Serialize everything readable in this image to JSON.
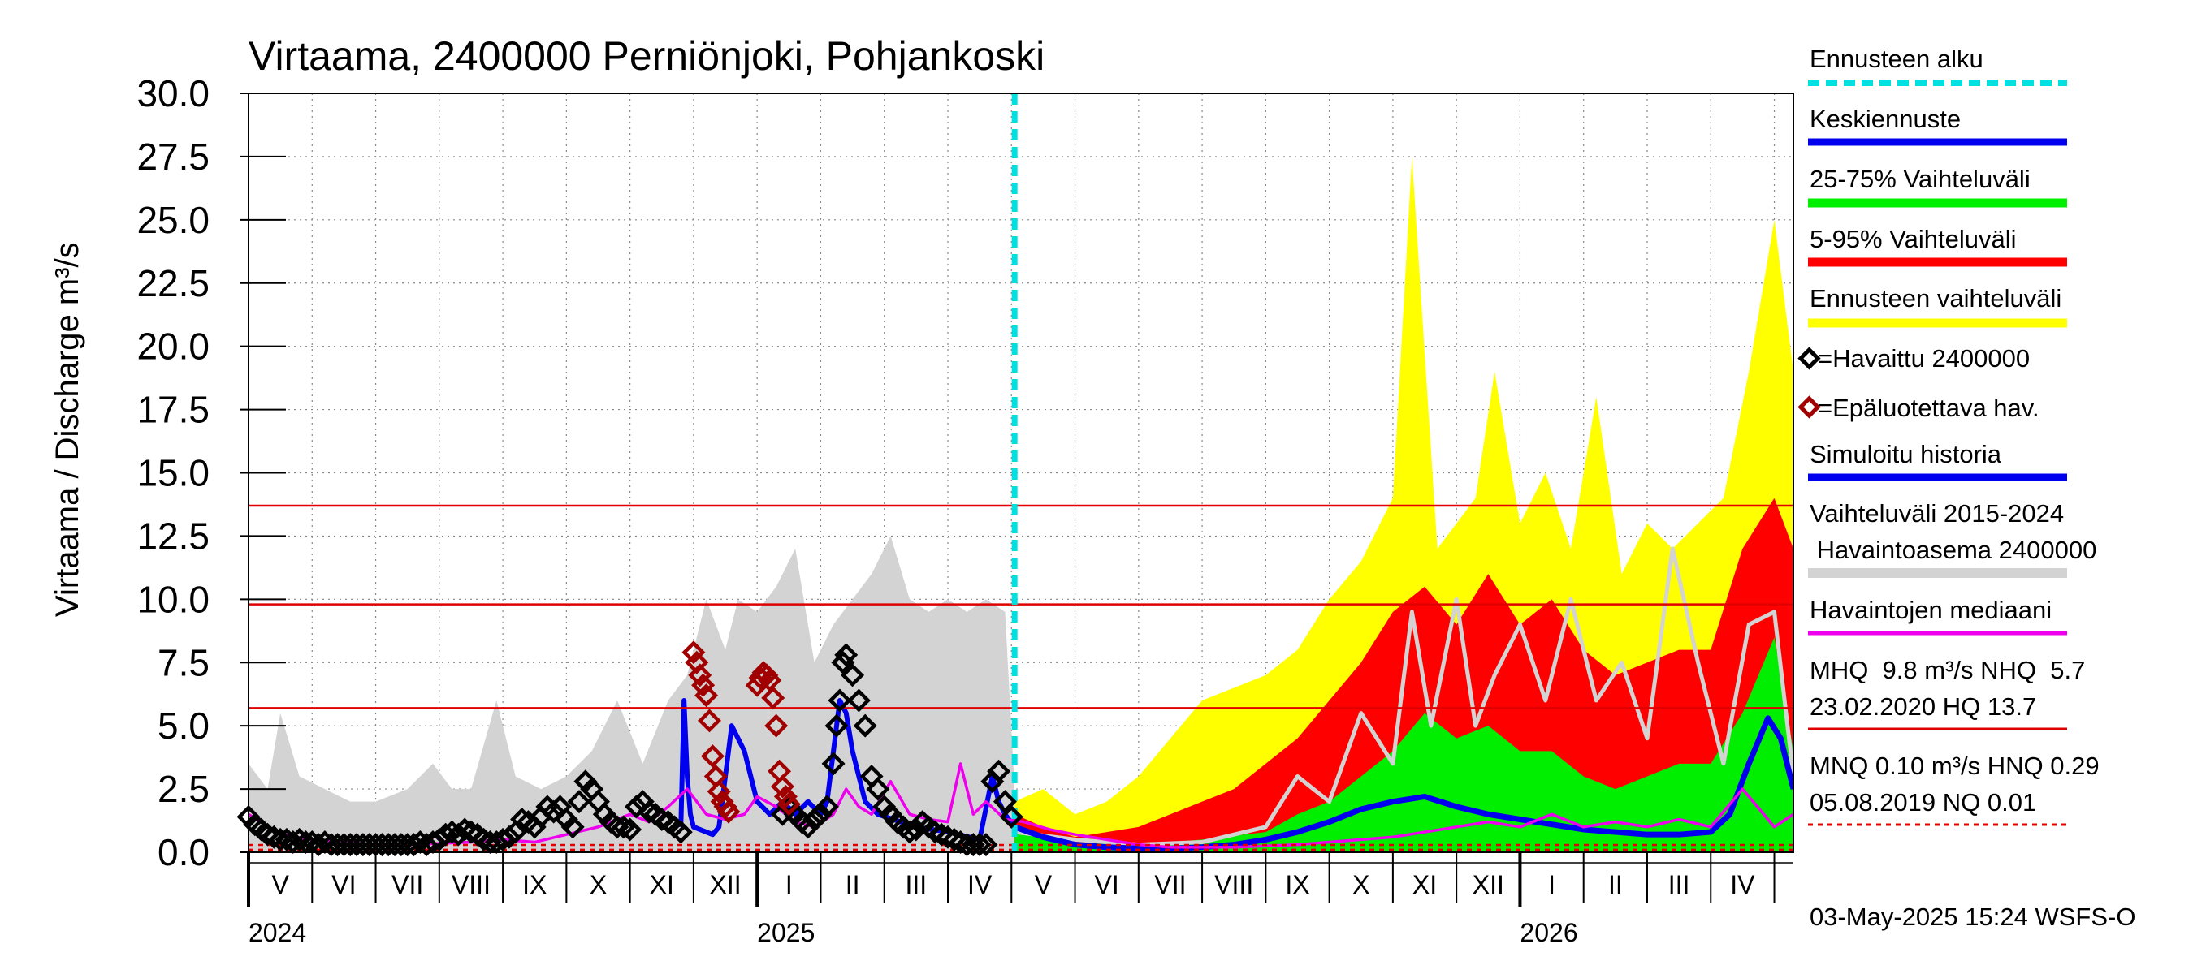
{
  "chart_data": {
    "type": "area",
    "title": "Virtaama, 2400000 Perniönjoki, Pohjankoski",
    "ylabel": "Virtaama / Discharge   m³/s",
    "ylim": [
      0,
      30
    ],
    "y_ticks": [
      "0.0",
      "2.5",
      "5.0",
      "7.5",
      "10.0",
      "12.5",
      "15.0",
      "17.5",
      "20.0",
      "22.5",
      "25.0",
      "27.5",
      "30.0"
    ],
    "x_range_months": [
      0,
      24.3
    ],
    "month_labels": [
      {
        "label": "V",
        "pos": 0.5
      },
      {
        "label": "VI",
        "pos": 1.5
      },
      {
        "label": "VII",
        "pos": 2.5
      },
      {
        "label": "VIII",
        "pos": 3.5
      },
      {
        "label": "IX",
        "pos": 4.5
      },
      {
        "label": "X",
        "pos": 5.5
      },
      {
        "label": "XI",
        "pos": 6.5
      },
      {
        "label": "XII",
        "pos": 7.5
      },
      {
        "label": "I",
        "pos": 8.5
      },
      {
        "label": "II",
        "pos": 9.5
      },
      {
        "label": "III",
        "pos": 10.5
      },
      {
        "label": "IV",
        "pos": 11.5
      },
      {
        "label": "V",
        "pos": 12.5
      },
      {
        "label": "VI",
        "pos": 13.5
      },
      {
        "label": "VII",
        "pos": 14.5
      },
      {
        "label": "VIII",
        "pos": 15.5
      },
      {
        "label": "IX",
        "pos": 16.5
      },
      {
        "label": "X",
        "pos": 17.5
      },
      {
        "label": "XI",
        "pos": 18.5
      },
      {
        "label": "XII",
        "pos": 19.5
      },
      {
        "label": "I",
        "pos": 20.5
      },
      {
        "label": "II",
        "pos": 21.5
      },
      {
        "label": "III",
        "pos": 22.5
      },
      {
        "label": "IV",
        "pos": 23.5
      }
    ],
    "year_labels": [
      {
        "label": "2024",
        "pos": 0
      },
      {
        "label": "2025",
        "pos": 8
      },
      {
        "label": "2026",
        "pos": 20
      }
    ],
    "forecast_start": 12.05,
    "reference_lines": [
      {
        "name": "HQ",
        "value": 13.7,
        "color": "#e00000",
        "style": "solid"
      },
      {
        "name": "MHQ",
        "value": 9.8,
        "color": "#e00000",
        "style": "solid"
      },
      {
        "name": "NHQ",
        "value": 5.7,
        "color": "#e00000",
        "style": "solid"
      },
      {
        "name": "HNQ",
        "value": 0.29,
        "color": "#e00000",
        "style": "dashed"
      },
      {
        "name": "MNQ",
        "value": 0.1,
        "color": "#e00000",
        "style": "dashed"
      },
      {
        "name": "NQ",
        "value": 0.01,
        "color": "#e00000",
        "style": "dashed"
      }
    ],
    "series": [
      {
        "name": "Vaihteluväli 2015-2024 Havaintoasema 2400000 (max)",
        "color": "#d3d3d3",
        "x": [
          0,
          0.3,
          0.5,
          0.8,
          1.2,
          1.6,
          2.0,
          2.5,
          2.9,
          3.2,
          3.5,
          3.9,
          4.2,
          4.6,
          5.0,
          5.4,
          5.8,
          6.2,
          6.6,
          6.9,
          7.2,
          7.5,
          7.7,
          8.0,
          8.3,
          8.6,
          8.9,
          9.2,
          9.5,
          9.8,
          10.1,
          10.4,
          10.7,
          11.0,
          11.3,
          11.6,
          11.9,
          12.05
        ],
        "values": [
          3.5,
          2.5,
          5.5,
          3.0,
          2.5,
          2.0,
          2.0,
          2.5,
          3.5,
          2.5,
          2.5,
          6.0,
          3.0,
          2.5,
          3.0,
          4.0,
          6.0,
          3.5,
          6.0,
          7.0,
          10.0,
          8.0,
          10.0,
          9.5,
          10.5,
          12.0,
          7.5,
          9.0,
          10.0,
          11.0,
          12.5,
          10.0,
          9.5,
          10.0,
          9.5,
          10.0,
          9.5,
          2.5
        ]
      },
      {
        "name": "Ennusteen vaihteluväli",
        "color": "#ffff00",
        "x": [
          12.05,
          12.5,
          13.0,
          13.5,
          14.0,
          14.5,
          15.0,
          15.5,
          16.0,
          16.5,
          17.0,
          17.5,
          18.0,
          18.3,
          18.7,
          19.0,
          19.3,
          19.6,
          20.0,
          20.4,
          20.8,
          21.2,
          21.6,
          22.0,
          22.4,
          22.8,
          23.2,
          23.6,
          24.0,
          24.3
        ],
        "values": [
          2.0,
          2.5,
          1.5,
          2.0,
          3.0,
          4.5,
          6.0,
          6.5,
          7.0,
          8.0,
          10.0,
          11.5,
          14.0,
          27.5,
          12.0,
          13.0,
          14.0,
          19.0,
          13.0,
          15.0,
          12.0,
          18.0,
          11.0,
          13.0,
          12.0,
          13.0,
          14.0,
          19.0,
          25.0,
          19.0
        ]
      },
      {
        "name": "5-95% Vaihteluväli",
        "color": "#ff0000",
        "x": [
          12.05,
          12.5,
          13.0,
          13.5,
          14.0,
          14.5,
          15.0,
          15.5,
          16.0,
          16.5,
          17.0,
          17.5,
          18.0,
          18.5,
          19.0,
          19.5,
          20.0,
          20.5,
          21.0,
          21.5,
          22.0,
          22.5,
          23.0,
          23.5,
          24.0,
          24.3
        ],
        "values": [
          1.5,
          1.0,
          0.6,
          0.8,
          1.0,
          1.5,
          2.0,
          2.5,
          3.5,
          4.5,
          6.0,
          7.5,
          9.5,
          10.5,
          9.0,
          11.0,
          9.0,
          10.0,
          8.0,
          7.0,
          7.5,
          8.0,
          8.0,
          12.0,
          14.0,
          12.0
        ]
      },
      {
        "name": "25-75% Vaihteluväli",
        "color": "#00ee00",
        "x": [
          12.05,
          13.0,
          14.0,
          15.0,
          16.0,
          16.5,
          17.0,
          17.5,
          18.0,
          18.5,
          19.0,
          19.5,
          20.0,
          20.5,
          21.0,
          21.5,
          22.0,
          22.5,
          23.0,
          23.5,
          24.0,
          24.3
        ],
        "values": [
          1.0,
          0.4,
          0.3,
          0.5,
          0.8,
          1.5,
          2.0,
          3.0,
          4.0,
          5.5,
          4.5,
          5.0,
          4.0,
          4.0,
          3.0,
          2.5,
          3.0,
          3.5,
          3.5,
          5.5,
          8.5,
          4.0
        ]
      },
      {
        "name": "Keskiennuste",
        "color": "#0000ee",
        "x": [
          12.05,
          12.5,
          13.0,
          13.5,
          14.0,
          14.5,
          15.0,
          15.5,
          16.0,
          16.5,
          17.0,
          17.5,
          18.0,
          18.5,
          19.0,
          19.5,
          20.0,
          20.5,
          21.0,
          21.5,
          22.0,
          22.5,
          23.0,
          23.3,
          23.6,
          23.9,
          24.1,
          24.3
        ],
        "values": [
          1.0,
          0.6,
          0.3,
          0.2,
          0.15,
          0.15,
          0.2,
          0.3,
          0.5,
          0.8,
          1.2,
          1.7,
          2.0,
          2.2,
          1.8,
          1.5,
          1.3,
          1.1,
          0.9,
          0.8,
          0.7,
          0.7,
          0.8,
          1.5,
          3.5,
          5.3,
          4.5,
          2.5
        ]
      },
      {
        "name": "Simuloitu historia",
        "color": "#0000ee",
        "x": [
          6.8,
          6.85,
          6.9,
          6.95,
          7.0,
          7.1,
          7.2,
          7.3,
          7.4,
          7.5,
          7.6,
          7.8,
          8.0,
          8.2,
          8.4,
          8.6,
          8.8,
          9.0,
          9.1,
          9.2,
          9.3,
          9.4,
          9.5,
          9.7,
          9.9,
          10.5,
          11.0,
          11.5,
          11.7,
          11.8,
          11.9,
          12.05
        ],
        "values": [
          1.0,
          6.0,
          3.0,
          1.5,
          1.0,
          0.9,
          0.8,
          0.7,
          1.0,
          3.0,
          5.0,
          4.0,
          2.0,
          1.5,
          2.0,
          1.5,
          2.0,
          1.5,
          2.0,
          4.0,
          6.0,
          5.5,
          4.0,
          2.0,
          1.5,
          1.0,
          0.8,
          0.5,
          3.0,
          2.0,
          1.5,
          1.0
        ]
      },
      {
        "name": "Havaintojen mediaani",
        "color": "#ee00ee",
        "x": [
          0,
          0.5,
          1.0,
          1.5,
          2.0,
          2.5,
          3.0,
          3.5,
          4.0,
          4.5,
          5.0,
          5.5,
          6.0,
          6.3,
          6.6,
          6.9,
          7.2,
          7.5,
          7.8,
          8.0,
          8.3,
          8.6,
          8.9,
          9.2,
          9.4,
          9.6,
          9.8,
          10.1,
          10.4,
          10.7,
          11.0,
          11.2,
          11.4,
          11.6,
          11.9,
          12.2,
          12.6,
          13.0,
          13.5,
          14.0,
          14.5,
          15.0,
          15.5,
          16.0,
          16.5,
          17.0,
          17.5,
          18.0,
          18.5,
          19.0,
          19.5,
          20.0,
          20.5,
          21.0,
          21.5,
          22.0,
          22.5,
          23.0,
          23.5,
          24.0,
          24.3
        ],
        "values": [
          1.5,
          0.7,
          0.5,
          0.4,
          0.3,
          0.3,
          0.35,
          0.4,
          0.5,
          0.4,
          0.7,
          1.0,
          1.5,
          1.2,
          1.8,
          2.5,
          1.5,
          1.3,
          1.5,
          2.2,
          1.8,
          1.2,
          1.0,
          1.5,
          2.5,
          1.8,
          1.5,
          2.8,
          1.5,
          1.3,
          1.2,
          3.5,
          1.5,
          2.0,
          1.3,
          1.2,
          0.9,
          0.7,
          0.5,
          0.3,
          0.2,
          0.2,
          0.2,
          0.25,
          0.3,
          0.4,
          0.5,
          0.6,
          0.8,
          1.0,
          1.2,
          1.0,
          1.5,
          1.0,
          1.2,
          1.0,
          1.3,
          1.0,
          2.5,
          1.0,
          1.5
        ]
      },
      {
        "name": "Vaihteluväli 2015-2024 (forecast years)",
        "color": "#d3d3d3",
        "x": [
          12.05,
          13.0,
          14.0,
          15.0,
          16.0,
          16.5,
          17.0,
          17.5,
          18.0,
          18.3,
          18.6,
          19.0,
          19.3,
          19.6,
          20.0,
          20.4,
          20.8,
          21.2,
          21.6,
          22.0,
          22.4,
          22.8,
          23.2,
          23.6,
          24.0,
          24.3
        ],
        "values": [
          0.8,
          0.5,
          0.3,
          0.4,
          1.0,
          3.0,
          2.0,
          5.5,
          3.5,
          9.5,
          5.0,
          10.0,
          5.0,
          7.0,
          9.0,
          6.0,
          10.0,
          6.0,
          7.5,
          4.5,
          12.0,
          7.5,
          3.5,
          9.0,
          9.5,
          3.0
        ]
      }
    ],
    "observed": {
      "name": "Havaittu 2400000",
      "color": "#000000",
      "x": [
        0.0,
        0.1,
        0.2,
        0.3,
        0.4,
        0.5,
        0.6,
        0.7,
        0.8,
        0.9,
        1.0,
        1.1,
        1.2,
        1.3,
        1.4,
        1.5,
        1.6,
        1.7,
        1.8,
        1.9,
        2.0,
        2.1,
        2.2,
        2.3,
        2.4,
        2.5,
        2.6,
        2.7,
        2.8,
        2.9,
        3.0,
        3.1,
        3.2,
        3.3,
        3.4,
        3.5,
        3.6,
        3.7,
        3.8,
        3.9,
        4.0,
        4.1,
        4.2,
        4.3,
        4.4,
        4.5,
        4.6,
        4.7,
        4.8,
        4.9,
        5.0,
        5.1,
        5.2,
        5.3,
        5.4,
        5.5,
        5.6,
        5.7,
        5.8,
        5.9,
        6.0,
        6.1,
        6.2,
        6.3,
        6.4,
        6.5,
        6.6,
        6.7,
        6.8,
        8.4,
        8.5,
        8.6,
        8.7,
        8.8,
        8.9,
        9.0,
        9.1,
        9.2,
        9.25,
        9.3,
        9.35,
        9.4,
        9.5,
        9.6,
        9.7,
        9.8,
        9.9,
        10.0,
        10.1,
        10.2,
        10.3,
        10.4,
        10.5,
        10.6,
        10.7,
        10.8,
        10.9,
        11.0,
        11.1,
        11.2,
        11.3,
        11.4,
        11.5,
        11.6,
        11.7,
        11.8,
        11.9,
        12.0
      ],
      "values": [
        1.4,
        1.1,
        0.9,
        0.7,
        0.6,
        0.5,
        0.5,
        0.4,
        0.5,
        0.4,
        0.4,
        0.3,
        0.4,
        0.3,
        0.3,
        0.3,
        0.3,
        0.3,
        0.3,
        0.3,
        0.3,
        0.3,
        0.3,
        0.3,
        0.3,
        0.3,
        0.3,
        0.4,
        0.3,
        0.4,
        0.5,
        0.7,
        0.8,
        0.7,
        0.9,
        0.8,
        0.7,
        0.5,
        0.4,
        0.4,
        0.5,
        0.6,
        0.8,
        1.3,
        1.2,
        1.0,
        1.4,
        1.8,
        1.6,
        1.8,
        1.3,
        1.0,
        2.0,
        2.8,
        2.5,
        2.0,
        1.5,
        1.2,
        1.0,
        1.0,
        0.9,
        1.8,
        2.0,
        1.6,
        1.5,
        1.3,
        1.2,
        1.0,
        0.8,
        1.5,
        1.8,
        1.5,
        1.2,
        1.0,
        1.3,
        1.5,
        1.8,
        3.5,
        5.0,
        6.0,
        7.5,
        7.8,
        7.0,
        6.0,
        5.0,
        3.0,
        2.5,
        1.8,
        1.5,
        1.2,
        1.0,
        0.8,
        0.9,
        1.2,
        1.0,
        0.8,
        0.7,
        0.6,
        0.5,
        0.4,
        0.3,
        0.3,
        0.3,
        0.3,
        2.8,
        3.2,
        2.0,
        1.4
      ]
    },
    "unreliable": {
      "name": "Epäluotettava hav.",
      "color": "#a00000",
      "x": [
        7.0,
        7.05,
        7.1,
        7.15,
        7.2,
        7.25,
        7.3,
        7.35,
        7.4,
        7.45,
        7.5,
        7.55,
        8.0,
        8.05,
        8.1,
        8.15,
        8.2,
        8.25,
        8.3,
        8.35,
        8.4,
        8.45,
        8.5
      ],
      "values": [
        7.9,
        7.5,
        7.0,
        6.6,
        6.2,
        5.2,
        3.8,
        3.0,
        2.4,
        2.0,
        1.8,
        1.6,
        6.6,
        6.9,
        7.1,
        7.0,
        6.8,
        6.1,
        5.0,
        3.2,
        2.6,
        2.2,
        1.9
      ]
    }
  },
  "legend": {
    "forecast_start": "Ennusteen alku",
    "mean_forecast": "Keskiennuste",
    "range_25_75": "25-75% Vaihteluväli",
    "range_5_95": "5-95% Vaihteluväli",
    "forecast_range": "Ennusteen vaihteluväli",
    "observed": "=Havaittu 2400000",
    "unreliable": "=Epäluotettava hav.",
    "simulated": "Simuloitu historia",
    "hist_range_line1": "Vaihteluväli 2015-2024",
    "hist_range_line2": " Havaintoasema 2400000",
    "median": "Havaintojen mediaani",
    "stats1_line1": "MHQ  9.8 m³/s NHQ  5.7",
    "stats1_line2": "23.02.2020 HQ 13.7",
    "stats2_line1": "MNQ 0.10 m³/s HNQ 0.29",
    "stats2_line2": "05.08.2019 NQ 0.01"
  },
  "colors": {
    "forecast_start": "#00e0e0",
    "mean_forecast": "#0000ee",
    "range_25_75": "#00ee00",
    "range_5_95": "#ff0000",
    "forecast_range": "#ffff00",
    "simulated": "#0000ee",
    "hist_range": "#d3d3d3",
    "median": "#ee00ee",
    "reference": "#e00000",
    "observed": "#000000",
    "unreliable": "#a00000"
  },
  "footer": "03-May-2025 15:24 WSFS-O"
}
